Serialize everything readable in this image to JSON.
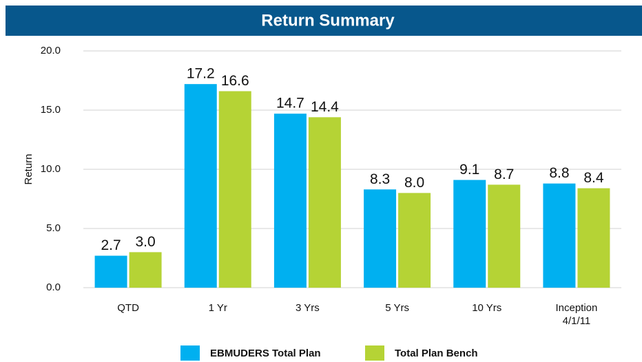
{
  "chart_data": {
    "type": "bar",
    "title": "Return Summary",
    "ylabel": "Return",
    "categories": [
      "QTD",
      "1 Yr",
      "3 Yrs",
      "5 Yrs",
      "10 Yrs",
      "Inception 4/1/11"
    ],
    "series": [
      {
        "name": "EBMUDERS Total Plan",
        "color": "#00b0f0",
        "values": [
          2.7,
          17.2,
          14.7,
          8.3,
          9.1,
          8.8
        ],
        "value_labels": [
          "2.7",
          "17.2",
          "14.7",
          "8.3",
          "9.1",
          "8.8"
        ]
      },
      {
        "name": "Total Plan Bench",
        "color": "#b5d335",
        "values": [
          3.0,
          16.6,
          14.4,
          8.0,
          8.7,
          8.4
        ],
        "value_labels": [
          "3.0",
          "16.6",
          "14.4",
          "8.0",
          "8.7",
          "8.4"
        ]
      }
    ],
    "ylim": [
      0,
      20
    ],
    "yticks": [
      {
        "value": 0,
        "label": "0.0"
      },
      {
        "value": 5,
        "label": "5.0"
      },
      {
        "value": 10,
        "label": "10.0"
      },
      {
        "value": 15,
        "label": "15.0"
      },
      {
        "value": 20,
        "label": "20.0"
      }
    ],
    "grid": true,
    "legend": "bottom"
  }
}
